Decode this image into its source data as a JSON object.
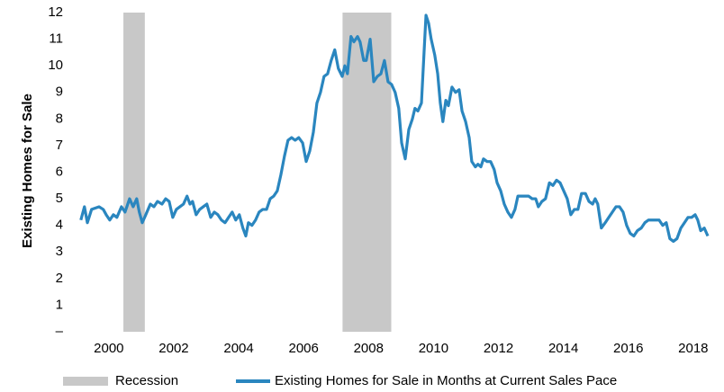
{
  "chart_data": {
    "type": "line",
    "y_label": "Existing Homes for Sale",
    "xlim": [
      1999.81,
      2019.28
    ],
    "xticks": [
      2000,
      2002,
      2004,
      2006,
      2008,
      2010,
      2012,
      2014,
      2016,
      2018
    ],
    "ylim": [
      0,
      12
    ],
    "yticks": [
      {
        "value": 0,
        "label": "–"
      },
      1,
      2,
      3,
      4,
      5,
      6,
      7,
      8,
      9,
      10,
      11,
      12
    ],
    "grid": false,
    "legend": "bottom",
    "shaded_periods": {
      "name": "Recession",
      "color": "#c8c8c8",
      "ranges": [
        [
          2001.17,
          2001.83
        ],
        [
          2007.92,
          2009.42
        ]
      ]
    },
    "x": [
      1999.86,
      1999.97,
      2000.06,
      2000.19,
      2000.42,
      2000.55,
      2000.64,
      2000.75,
      2000.86,
      2000.97,
      2001.11,
      2001.22,
      2001.36,
      2001.47,
      2001.58,
      2001.66,
      2001.75,
      2001.86,
      2002.0,
      2002.11,
      2002.22,
      2002.36,
      2002.47,
      2002.58,
      2002.69,
      2002.8,
      2002.91,
      2003.02,
      2003.13,
      2003.22,
      2003.3,
      2003.41,
      2003.52,
      2003.63,
      2003.74,
      2003.86,
      2003.97,
      2004.08,
      2004.19,
      2004.3,
      2004.41,
      2004.52,
      2004.63,
      2004.74,
      2004.85,
      2004.94,
      2005.02,
      2005.13,
      2005.24,
      2005.35,
      2005.46,
      2005.58,
      2005.69,
      2005.8,
      2005.91,
      2006.02,
      2006.13,
      2006.24,
      2006.35,
      2006.46,
      2006.57,
      2006.69,
      2006.8,
      2006.91,
      2007.02,
      2007.13,
      2007.24,
      2007.35,
      2007.46,
      2007.57,
      2007.68,
      2007.79,
      2007.91,
      2007.99,
      2008.07,
      2008.18,
      2008.27,
      2008.38,
      2008.46,
      2008.57,
      2008.65,
      2008.77,
      2008.88,
      2008.99,
      2009.1,
      2009.21,
      2009.32,
      2009.43,
      2009.54,
      2009.65,
      2009.74,
      2009.85,
      2009.96,
      2010.07,
      2010.15,
      2010.24,
      2010.35,
      2010.43,
      2010.49,
      2010.57,
      2010.65,
      2010.76,
      2010.85,
      2010.93,
      2011.01,
      2011.1,
      2011.18,
      2011.29,
      2011.4,
      2011.51,
      2011.6,
      2011.71,
      2011.82,
      2011.9,
      2012.01,
      2012.09,
      2012.18,
      2012.26,
      2012.37,
      2012.48,
      2012.59,
      2012.68,
      2012.79,
      2012.9,
      2013.01,
      2013.12,
      2013.23,
      2013.32,
      2013.43,
      2013.54,
      2013.65,
      2013.76,
      2013.87,
      2013.95,
      2014.06,
      2014.17,
      2014.29,
      2014.4,
      2014.51,
      2014.62,
      2014.73,
      2014.84,
      2014.95,
      2015.06,
      2015.17,
      2015.28,
      2015.4,
      2015.51,
      2015.62,
      2015.7,
      2015.78,
      2015.89,
      2016.01,
      2016.12,
      2016.23,
      2016.34,
      2016.45,
      2016.56,
      2016.67,
      2016.78,
      2016.89,
      2017.0,
      2017.12,
      2017.23,
      2017.34,
      2017.5,
      2017.67,
      2017.78,
      2017.89,
      2018.0,
      2018.11,
      2018.22,
      2018.34,
      2018.45,
      2018.56,
      2018.67,
      2018.78,
      2018.86,
      2018.95,
      2019.06,
      2019.17
    ],
    "series": [
      {
        "name": "Existing Homes for Sale in Months at Current Sales Pace",
        "color": "#2a86bf",
        "values": [
          4.2,
          4.7,
          4.1,
          4.6,
          4.7,
          4.6,
          4.4,
          4.2,
          4.4,
          4.3,
          4.7,
          4.5,
          5.0,
          4.7,
          5.0,
          4.5,
          4.1,
          4.4,
          4.8,
          4.7,
          4.9,
          4.8,
          5.0,
          4.9,
          4.3,
          4.6,
          4.7,
          4.8,
          5.1,
          4.8,
          4.9,
          4.4,
          4.6,
          4.7,
          4.8,
          4.3,
          4.5,
          4.4,
          4.2,
          4.1,
          4.3,
          4.5,
          4.2,
          4.4,
          3.9,
          3.6,
          4.1,
          4.0,
          4.2,
          4.5,
          4.6,
          4.6,
          5.0,
          5.1,
          5.3,
          5.9,
          6.6,
          7.2,
          7.3,
          7.2,
          7.3,
          7.1,
          6.4,
          6.8,
          7.5,
          8.6,
          9.0,
          9.6,
          9.7,
          10.2,
          10.6,
          9.9,
          9.6,
          10.0,
          9.7,
          11.1,
          10.9,
          11.1,
          10.9,
          10.2,
          10.2,
          11.0,
          9.4,
          9.6,
          9.7,
          10.2,
          9.4,
          9.3,
          9.0,
          8.4,
          7.1,
          6.5,
          7.6,
          8.0,
          8.4,
          8.3,
          8.6,
          10.5,
          11.9,
          11.6,
          11.0,
          10.4,
          9.7,
          8.6,
          7.9,
          8.7,
          8.5,
          9.2,
          9.0,
          9.1,
          8.3,
          7.9,
          7.3,
          6.4,
          6.2,
          6.3,
          6.2,
          6.5,
          6.4,
          6.4,
          6.1,
          5.6,
          5.3,
          4.8,
          4.5,
          4.3,
          4.6,
          5.1,
          5.1,
          5.1,
          5.1,
          5.0,
          5.0,
          4.7,
          4.9,
          5.0,
          5.6,
          5.5,
          5.7,
          5.6,
          5.3,
          5.0,
          4.4,
          4.6,
          4.6,
          5.2,
          5.2,
          4.9,
          4.8,
          5.0,
          4.8,
          3.9,
          4.1,
          4.3,
          4.5,
          4.7,
          4.7,
          4.5,
          4.0,
          3.7,
          3.6,
          3.8,
          3.9,
          4.1,
          4.2,
          4.2,
          4.2,
          4.0,
          4.1,
          3.5,
          3.4,
          3.5,
          3.9,
          4.1,
          4.3,
          4.3,
          4.4,
          4.2,
          3.8,
          3.9,
          3.6
        ]
      }
    ]
  }
}
